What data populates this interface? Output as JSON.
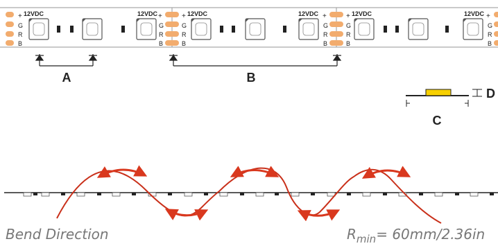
{
  "strip": {
    "voltage_label": "12VDC",
    "plus": "+",
    "pads": [
      "G",
      "R",
      "B"
    ]
  },
  "dimensions": {
    "a": "A",
    "b": "B",
    "c": "C",
    "d": "D"
  },
  "bend": {
    "caption": "Bend Direction",
    "rmin_symbol": "R",
    "rmin_sub": "min",
    "rmin_value": "=  60mm/2.36in"
  },
  "colors": {
    "pad": "#f2ac6e",
    "strip_border": "#b9b9b9",
    "led_outline": "#555555",
    "arrow": "#d9381e",
    "wave": "#c9301a",
    "chip": "#f7d000",
    "caption_text": "#777777"
  }
}
